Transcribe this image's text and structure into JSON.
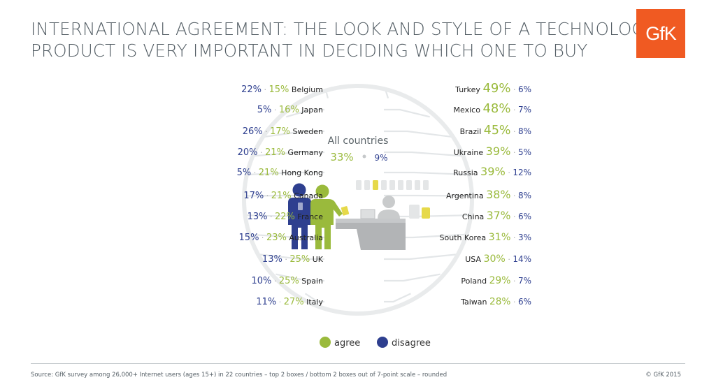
{
  "page": {
    "title_line1": "INTERNATIONAL AGREEMENT: THE LOOK AND STYLE OF A TECHNOLOGY",
    "title_line2": "PRODUCT IS VERY IMPORTANT IN DECIDING WHICH ONE TO BUY",
    "logo": "GfK",
    "source": "Source: GfK survey among 26,000+ Internet users (ages 15+) in 22 countries – top 2 boxes / bottom 2 boxes out of 7-point scale – rounded",
    "copyright": "© GfK 2015"
  },
  "colors": {
    "agree": "#9aba3c",
    "disagree": "#2e3f8f",
    "text": "#222222",
    "line": "#e3e6e8",
    "circle": "#e9ebec",
    "gray": "#a7a9ab"
  },
  "chart_data": {
    "type": "table",
    "title": "International agreement: the look and style of a technology product is very important in deciding which one to buy",
    "unit": "%",
    "series_names": [
      "agree",
      "disagree"
    ],
    "overall": {
      "label": "All countries",
      "agree": 33,
      "disagree": 9
    },
    "legend": {
      "agree": "agree",
      "disagree": "disagree"
    },
    "left": [
      {
        "country": "Belgium",
        "agree": 15,
        "disagree": 22
      },
      {
        "country": "Japan",
        "agree": 16,
        "disagree": 5
      },
      {
        "country": "Sweden",
        "agree": 17,
        "disagree": 26
      },
      {
        "country": "Germany",
        "agree": 21,
        "disagree": 20
      },
      {
        "country": "Hong Kong",
        "agree": 21,
        "disagree": 5
      },
      {
        "country": "Canada",
        "agree": 21,
        "disagree": 17
      },
      {
        "country": "France",
        "agree": 22,
        "disagree": 13
      },
      {
        "country": "Australia",
        "agree": 23,
        "disagree": 15
      },
      {
        "country": "UK",
        "agree": 25,
        "disagree": 13
      },
      {
        "country": "Spain",
        "agree": 25,
        "disagree": 10
      },
      {
        "country": "Italy",
        "agree": 27,
        "disagree": 11
      }
    ],
    "right": [
      {
        "country": "Turkey",
        "agree": 49,
        "disagree": 6
      },
      {
        "country": "Mexico",
        "agree": 48,
        "disagree": 7
      },
      {
        "country": "Brazil",
        "agree": 45,
        "disagree": 8
      },
      {
        "country": "Ukraine",
        "agree": 39,
        "disagree": 5
      },
      {
        "country": "Russia",
        "agree": 39,
        "disagree": 12
      },
      {
        "country": "Argentina",
        "agree": 38,
        "disagree": 8
      },
      {
        "country": "China",
        "agree": 37,
        "disagree": 6
      },
      {
        "country": "South Korea",
        "agree": 31,
        "disagree": 3
      },
      {
        "country": "USA",
        "agree": 30,
        "disagree": 14
      },
      {
        "country": "Poland",
        "agree": 29,
        "disagree": 7
      },
      {
        "country": "Taiwan",
        "agree": 28,
        "disagree": 6
      }
    ]
  }
}
